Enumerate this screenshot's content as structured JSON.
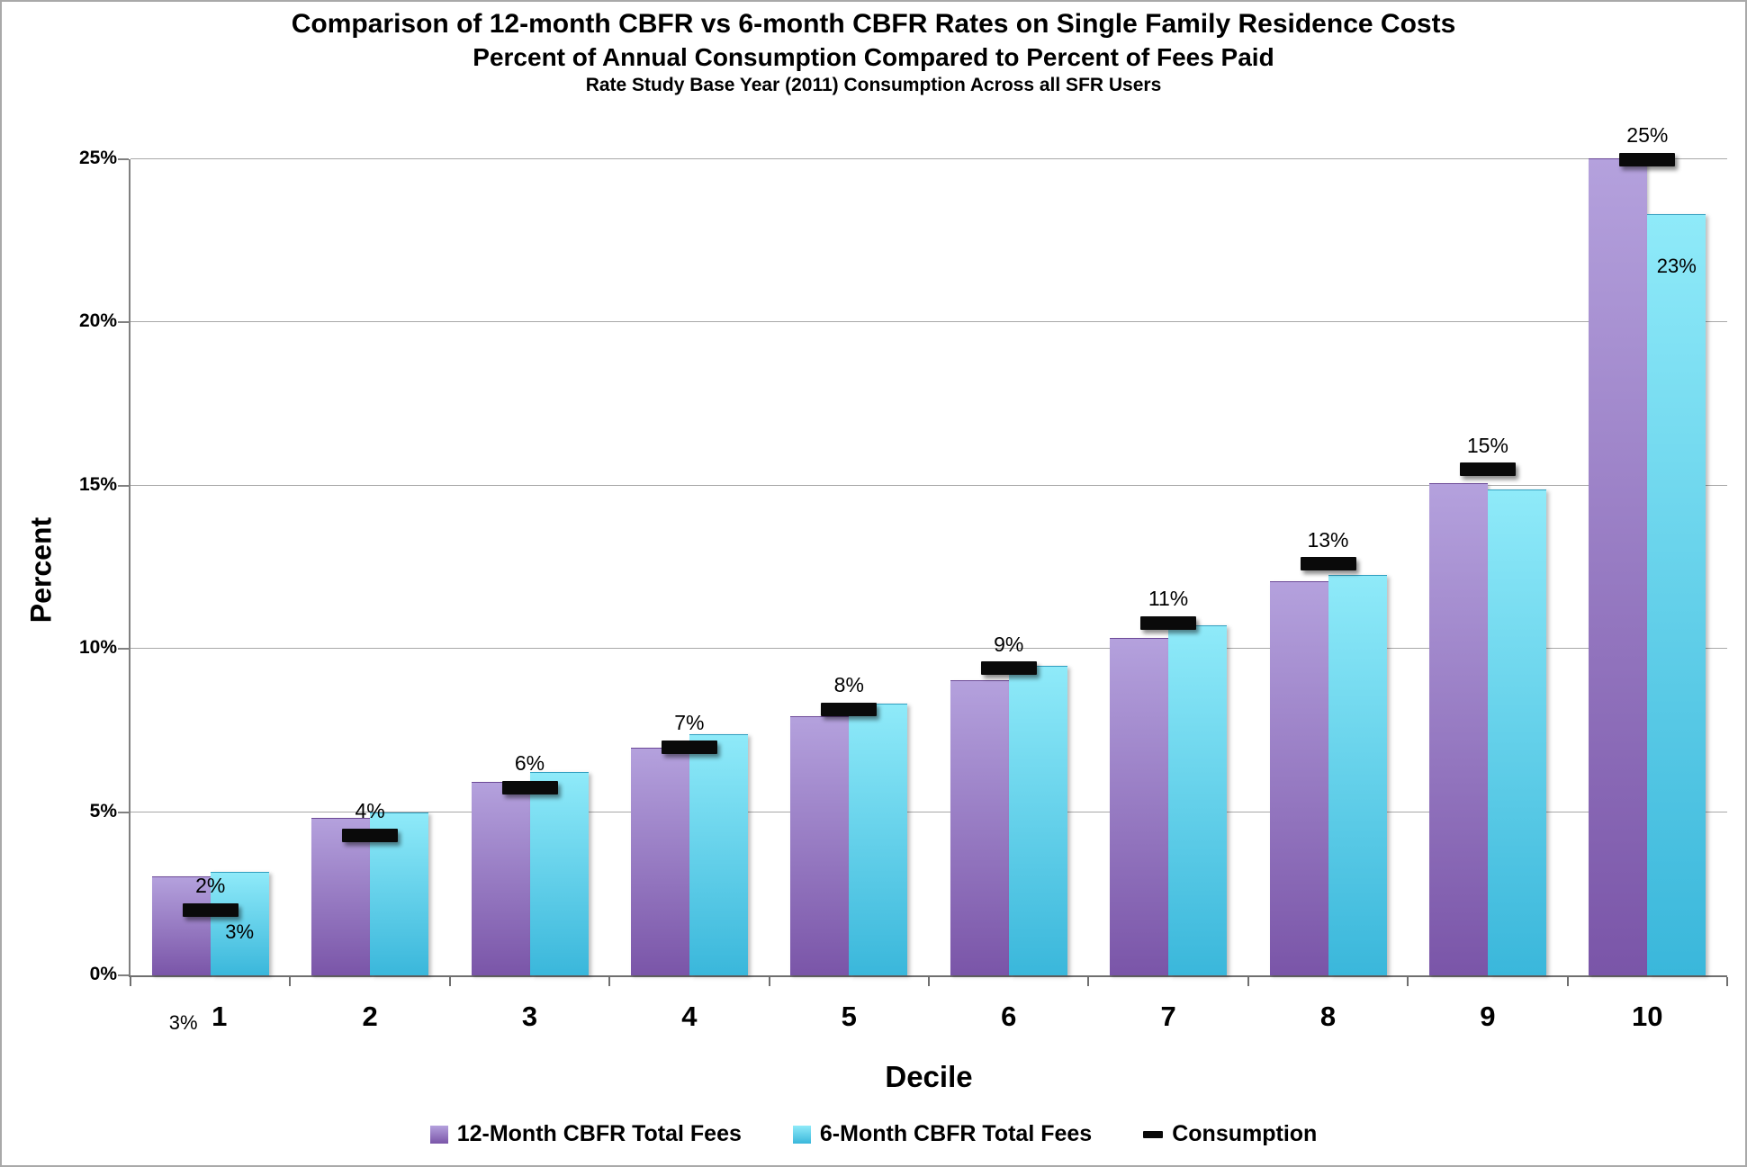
{
  "title": {
    "line1": "Comparison of 12-month CBFR vs 6-month CBFR Rates on Single Family Residence Costs",
    "line2": "Percent of Annual Consumption Compared to Percent of Fees Paid",
    "line3": "Rate Study Base Year (2011) Consumption Across all SFR Users"
  },
  "y_axis": {
    "title": "Percent",
    "tick_labels": [
      "0%",
      "5%",
      "10%",
      "15%",
      "20%",
      "25%"
    ],
    "tick_values": [
      0,
      5,
      10,
      15,
      20,
      25
    ]
  },
  "x_axis": {
    "title": "Decile",
    "tick_labels": [
      "1",
      "2",
      "3",
      "4",
      "5",
      "6",
      "7",
      "8",
      "9",
      "10"
    ]
  },
  "legend": {
    "items": [
      {
        "label": "12-Month CBFR Total Fees",
        "swatch": "purple-gradient-square"
      },
      {
        "label": "6-Month CBFR Total Fees",
        "swatch": "cyan-gradient-square"
      },
      {
        "label": "Consumption",
        "swatch": "black-dash"
      }
    ]
  },
  "colors": {
    "purple_top": "#b4a1dd",
    "purple_bottom": "#7a55a8",
    "cyan_top": "#8feaf9",
    "cyan_bottom": "#3ab7db",
    "consumption": "#0a0a0a",
    "gridline": "#a8a8a8",
    "axis": "#808080"
  },
  "chart_data": {
    "type": "bar",
    "title": "Comparison of 12-month CBFR vs 6-month CBFR Rates on Single Family Residence Costs",
    "subtitle": "Percent of Annual Consumption Compared to Percent of Fees Paid",
    "caption": "Rate Study Base Year (2011) Consumption Across all SFR Users",
    "xlabel": "Decile",
    "ylabel": "Percent",
    "ylim": [
      0,
      25
    ],
    "grid": true,
    "legend_position": "bottom",
    "categories": [
      1,
      2,
      3,
      4,
      5,
      6,
      7,
      8,
      9,
      10
    ],
    "series": [
      {
        "name": "12-Month CBFR Total Fees",
        "type": "bar",
        "values": [
          3.0,
          4.8,
          5.9,
          6.95,
          7.9,
          9.0,
          10.3,
          12.05,
          15.05,
          25.0
        ]
      },
      {
        "name": "6-Month CBFR Total Fees",
        "type": "bar",
        "values": [
          3.15,
          4.95,
          6.2,
          7.35,
          8.3,
          9.45,
          10.7,
          12.25,
          14.85,
          23.3
        ]
      },
      {
        "name": "Consumption",
        "type": "dash-marker",
        "values": [
          2.0,
          4.3,
          5.75,
          7.0,
          8.15,
          9.4,
          10.8,
          12.6,
          15.5,
          25.0
        ]
      }
    ],
    "consumption_point_labels": [
      "2%",
      "4%",
      "6%",
      "7%",
      "8%",
      "9%",
      "11%",
      "13%",
      "15%",
      "25%"
    ],
    "extra_labels": [
      {
        "text": "3%",
        "decile": 1,
        "placement": "inside-6month-bar",
        "value_y": 1.3
      },
      {
        "text": "3%",
        "decile": 1,
        "placement": "below-axis",
        "value_y": -1.5
      },
      {
        "text": "23%",
        "decile": 10,
        "placement": "inside-6month-bar",
        "value_y": 21.7
      }
    ]
  }
}
